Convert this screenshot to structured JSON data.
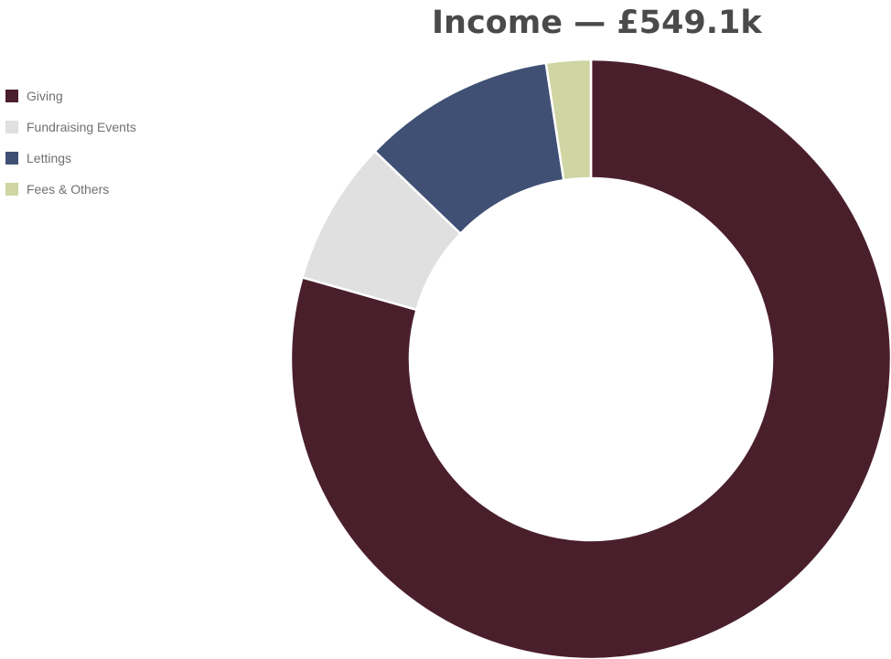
{
  "chart_data": {
    "type": "pie",
    "style": "donut",
    "title": "Income — £549.1k",
    "categories": [
      "Giving",
      "Fundraising Events",
      "Lettings",
      "Fees & Others"
    ],
    "values": [
      79.4,
      7.8,
      10.4,
      2.4
    ],
    "value_unit": "percent",
    "colors": [
      "#4a1f2c",
      "#e0e0e0",
      "#3f5074",
      "#cfd5a3"
    ],
    "legend_position": "left"
  }
}
